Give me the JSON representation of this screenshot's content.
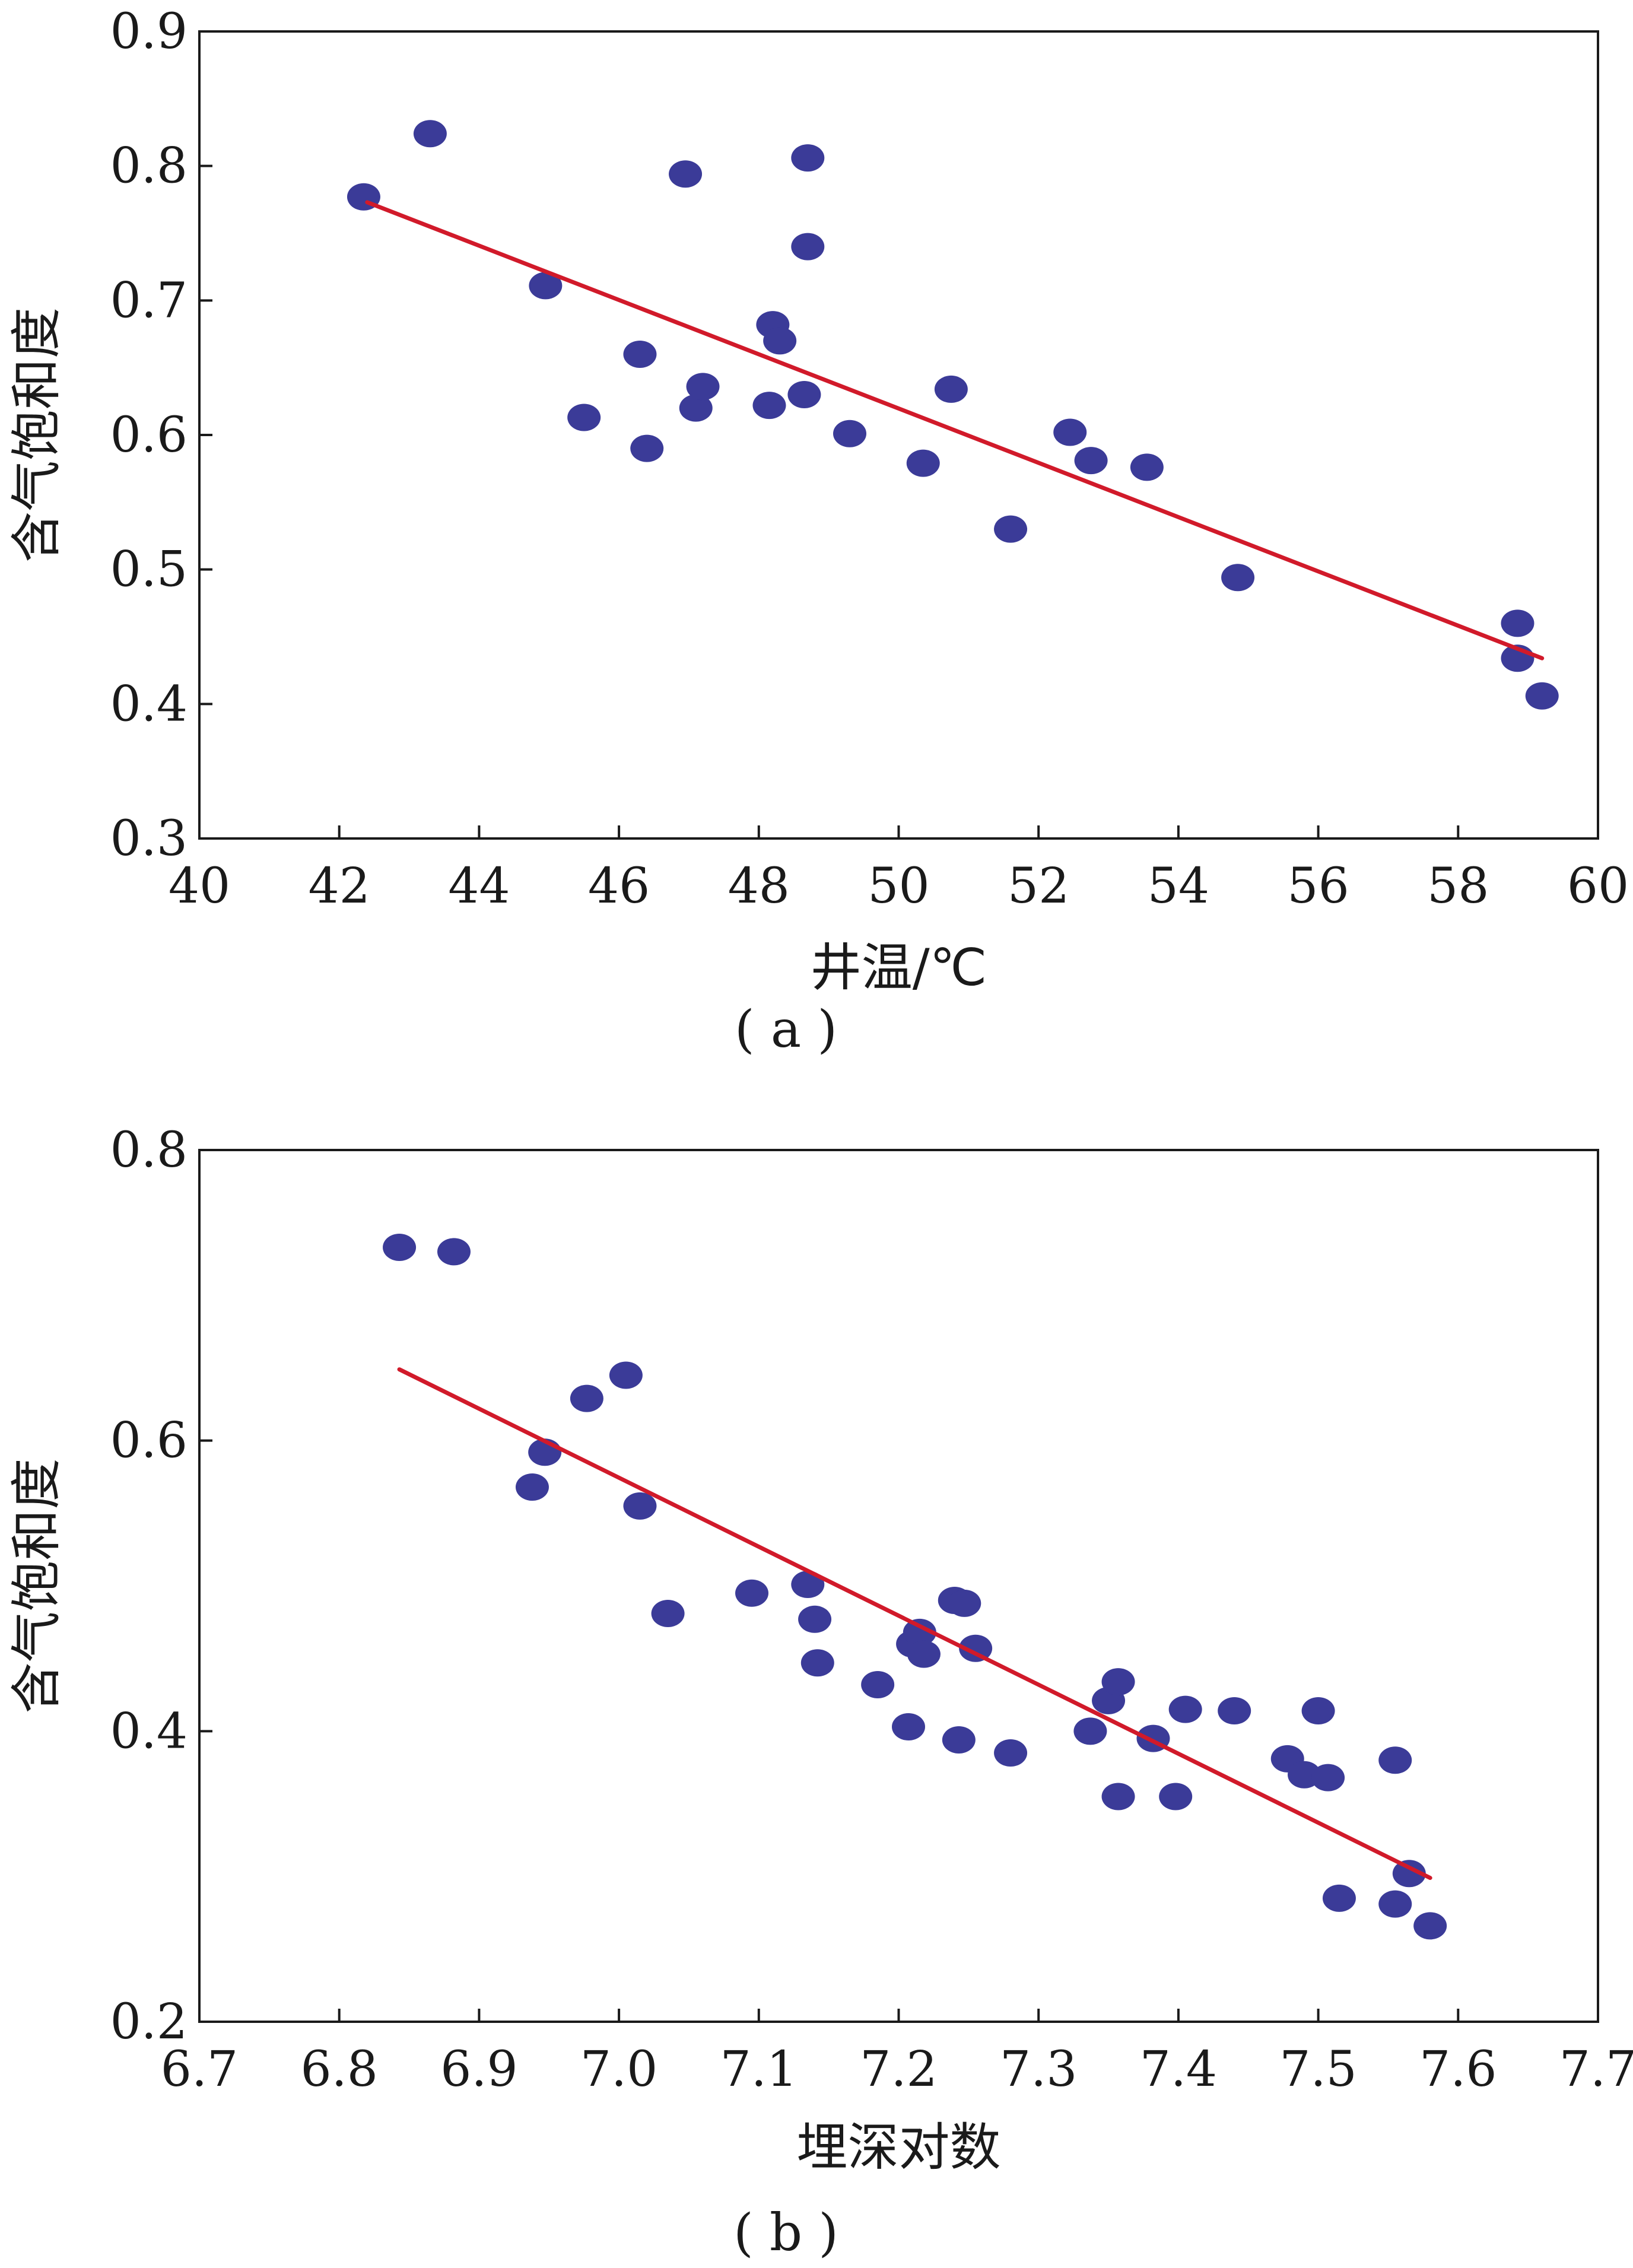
{
  "chart_data": [
    {
      "type": "scatter",
      "panel_label": "( a )",
      "xlabel": "井温/℃",
      "ylabel": "含气饱和度",
      "xlim": [
        40,
        60
      ],
      "ylim": [
        0.3,
        0.9
      ],
      "x_ticks": [
        "40",
        "42",
        "44",
        "46",
        "48",
        "50",
        "52",
        "54",
        "56",
        "58",
        "60"
      ],
      "y_ticks": [
        "0.3",
        "0.4",
        "0.5",
        "0.6",
        "0.7",
        "0.8",
        "0.9"
      ],
      "marker_color": "#3b3b98",
      "fit_color": "#d11a2a",
      "series": [
        {
          "points": [
            [
              42.35,
              0.777
            ],
            [
              43.3,
              0.824
            ],
            [
              44.95,
              0.711
            ],
            [
              45.5,
              0.613
            ],
            [
              46.3,
              0.66
            ],
            [
              46.4,
              0.59
            ],
            [
              46.95,
              0.794
            ],
            [
              47.1,
              0.62
            ],
            [
              47.2,
              0.636
            ],
            [
              48.15,
              0.622
            ],
            [
              48.2,
              0.682
            ],
            [
              48.3,
              0.67
            ],
            [
              48.65,
              0.63
            ],
            [
              48.7,
              0.806
            ],
            [
              48.7,
              0.74
            ],
            [
              49.3,
              0.601
            ],
            [
              50.35,
              0.579
            ],
            [
              50.75,
              0.634
            ],
            [
              51.6,
              0.53
            ],
            [
              52.45,
              0.602
            ],
            [
              52.75,
              0.581
            ],
            [
              53.55,
              0.576
            ],
            [
              54.85,
              0.494
            ],
            [
              58.85,
              0.46
            ],
            [
              58.85,
              0.434
            ],
            [
              59.2,
              0.406
            ]
          ]
        }
      ],
      "fit_line": {
        "x": [
          42.4,
          59.2
        ],
        "y": [
          0.773,
          0.434
        ]
      }
    },
    {
      "type": "scatter",
      "panel_label": "( b )",
      "xlabel": "埋深对数",
      "ylabel": "含气饱和度",
      "xlim": [
        6.7,
        7.7
      ],
      "ylim": [
        0.2,
        0.8
      ],
      "x_ticks": [
        "6.7",
        "6.8",
        "6.9",
        "7.0",
        "7.1",
        "7.2",
        "7.3",
        "7.4",
        "7.5",
        "7.6",
        "7.7"
      ],
      "y_ticks": [
        "0.2",
        "0.4",
        "0.6",
        "0.8"
      ],
      "marker_color": "#3b3b98",
      "fit_color": "#d11a2a",
      "series": [
        {
          "points": [
            [
              6.843,
              0.733
            ],
            [
              6.882,
              0.73
            ],
            [
              6.938,
              0.568
            ],
            [
              6.947,
              0.592
            ],
            [
              6.977,
              0.629
            ],
            [
              7.005,
              0.645
            ],
            [
              7.015,
              0.555
            ],
            [
              7.035,
              0.481
            ],
            [
              7.095,
              0.495
            ],
            [
              7.135,
              0.501
            ],
            [
              7.14,
              0.477
            ],
            [
              7.142,
              0.447
            ],
            [
              7.185,
              0.432
            ],
            [
              7.207,
              0.403
            ],
            [
              7.21,
              0.46
            ],
            [
              7.215,
              0.468
            ],
            [
              7.218,
              0.453
            ],
            [
              7.24,
              0.49
            ],
            [
              7.243,
              0.394
            ],
            [
              7.247,
              0.488
            ],
            [
              7.255,
              0.457
            ],
            [
              7.28,
              0.385
            ],
            [
              7.337,
              0.4
            ],
            [
              7.35,
              0.421
            ],
            [
              7.357,
              0.434
            ],
            [
              7.357,
              0.355
            ],
            [
              7.382,
              0.395
            ],
            [
              7.398,
              0.355
            ],
            [
              7.405,
              0.415
            ],
            [
              7.44,
              0.414
            ],
            [
              7.478,
              0.381
            ],
            [
              7.49,
              0.37
            ],
            [
              7.5,
              0.414
            ],
            [
              7.507,
              0.368
            ],
            [
              7.515,
              0.285
            ],
            [
              7.555,
              0.38
            ],
            [
              7.555,
              0.281
            ],
            [
              7.565,
              0.302
            ],
            [
              7.58,
              0.266
            ]
          ]
        }
      ],
      "fit_line": {
        "x": [
          6.843,
          7.58
        ],
        "y": [
          0.649,
          0.299
        ]
      }
    }
  ]
}
